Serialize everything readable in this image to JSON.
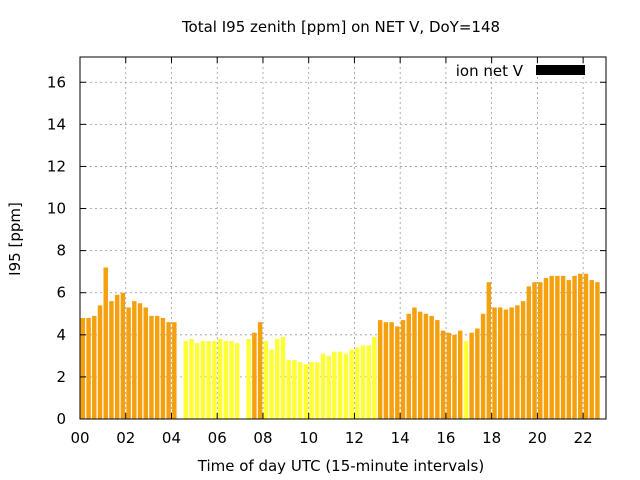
{
  "chart_data": {
    "type": "bar",
    "title": "Total I95 zenith [ppm] on NET V, DoY=148",
    "xlabel": "Time of day UTC (15-minute intervals)",
    "ylabel": "I95 [ppm]",
    "xlim": [
      0,
      23
    ],
    "ylim": [
      0,
      17.2
    ],
    "xticks": [
      "00",
      "02",
      "04",
      "06",
      "08",
      "10",
      "12",
      "14",
      "16",
      "18",
      "20",
      "22"
    ],
    "yticks": [
      "0",
      "2",
      "4",
      "6",
      "8",
      "10",
      "12",
      "14",
      "16"
    ],
    "grid": true,
    "legend": {
      "label": "ion net V",
      "color": "#000000",
      "position": "top-right"
    },
    "bar_colors": {
      "orange": "#f5a00e",
      "yellow": "#ffff33"
    },
    "x_hours": [
      0.0,
      0.25,
      0.5,
      0.75,
      1.0,
      1.25,
      1.5,
      1.75,
      2.0,
      2.25,
      2.5,
      2.75,
      3.0,
      3.25,
      3.5,
      3.75,
      4.0,
      4.25,
      4.5,
      4.75,
      5.0,
      5.25,
      5.5,
      5.75,
      6.0,
      6.25,
      6.5,
      6.75,
      7.0,
      7.25,
      7.5,
      7.75,
      8.0,
      8.25,
      8.5,
      8.75,
      9.0,
      9.25,
      9.5,
      9.75,
      10.0,
      10.25,
      10.5,
      10.75,
      11.0,
      11.25,
      11.5,
      11.75,
      12.0,
      12.25,
      12.5,
      12.75,
      13.0,
      13.25,
      13.5,
      13.75,
      14.0,
      14.25,
      14.5,
      14.75,
      15.0,
      15.25,
      15.5,
      15.75,
      16.0,
      16.25,
      16.5,
      16.75,
      17.0,
      17.25,
      17.5,
      17.75,
      18.0,
      18.25,
      18.5,
      18.75,
      19.0,
      19.25,
      19.5,
      19.75,
      20.0,
      20.25,
      20.5,
      20.75,
      21.0,
      21.25,
      21.5,
      21.75,
      22.0,
      22.25,
      22.5,
      22.75
    ],
    "values": [
      4.8,
      4.8,
      4.9,
      5.4,
      7.2,
      5.6,
      5.9,
      6.0,
      5.3,
      5.6,
      5.5,
      5.3,
      4.9,
      4.9,
      4.8,
      4.6,
      4.6,
      null,
      3.7,
      3.8,
      3.6,
      3.7,
      3.7,
      3.7,
      3.8,
      3.7,
      3.7,
      3.6,
      null,
      3.8,
      4.1,
      4.6,
      3.7,
      3.3,
      3.8,
      3.9,
      2.8,
      2.8,
      2.7,
      2.6,
      2.7,
      2.7,
      3.1,
      3.0,
      3.2,
      3.2,
      3.1,
      3.3,
      3.4,
      3.5,
      3.5,
      3.9,
      4.7,
      4.6,
      4.6,
      4.4,
      4.7,
      5.0,
      5.3,
      5.1,
      5.0,
      4.9,
      4.7,
      4.2,
      4.1,
      4.0,
      4.2,
      3.7,
      4.1,
      4.3,
      5.0,
      6.5,
      5.3,
      5.3,
      5.2,
      5.3,
      5.4,
      5.6,
      6.3,
      6.5,
      6.5,
      6.7,
      6.8,
      6.8,
      6.8,
      6.6,
      6.8,
      6.9,
      6.9,
      6.6,
      6.5,
      null
    ],
    "color_class": [
      "o",
      "o",
      "o",
      "o",
      "o",
      "o",
      "o",
      "o",
      "o",
      "o",
      "o",
      "o",
      "o",
      "o",
      "o",
      "o",
      "o",
      "y",
      "y",
      "y",
      "y",
      "y",
      "y",
      "y",
      "y",
      "y",
      "y",
      "y",
      "y",
      "y",
      "o",
      "o",
      "y",
      "y",
      "y",
      "y",
      "y",
      "y",
      "y",
      "y",
      "y",
      "y",
      "y",
      "y",
      "y",
      "y",
      "y",
      "y",
      "y",
      "y",
      "y",
      "y",
      "o",
      "o",
      "o",
      "o",
      "o",
      "o",
      "o",
      "o",
      "o",
      "o",
      "o",
      "o",
      "o",
      "o",
      "o",
      "y",
      "o",
      "o",
      "o",
      "o",
      "o",
      "o",
      "o",
      "o",
      "o",
      "o",
      "o",
      "o",
      "o",
      "o",
      "o",
      "o",
      "o",
      "o",
      "o",
      "o",
      "o",
      "o",
      "o",
      "o"
    ]
  }
}
